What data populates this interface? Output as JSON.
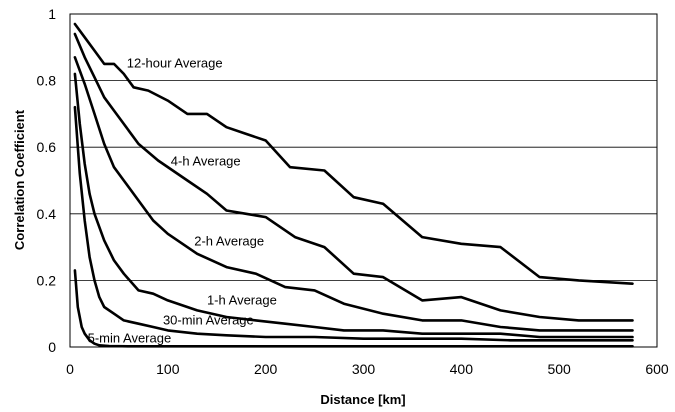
{
  "chart_data": {
    "type": "line",
    "title": "",
    "xlabel": "Distance  [km]",
    "ylabel": "Correlation Coefficient",
    "xlim": [
      0,
      600
    ],
    "ylim": [
      0,
      1
    ],
    "xticks": [
      0,
      100,
      200,
      300,
      400,
      500,
      600
    ],
    "yticks": [
      0,
      0.2,
      0.4,
      0.6,
      0.8,
      1
    ],
    "xtick_labels": [
      "0",
      "100",
      "200",
      "300",
      "400",
      "500",
      "600"
    ],
    "ytick_labels": [
      "0",
      "0.2",
      "0.4",
      "0.6",
      "0.8",
      "1"
    ],
    "grid": "horizontal",
    "legend": "inline labels",
    "colors": {
      "line": "#000000",
      "grid": "#000000",
      "background": "#ffffff"
    },
    "series": [
      {
        "name": "12-hour Average",
        "x": [
          5,
          15,
          25,
          35,
          45,
          55,
          65,
          80,
          100,
          120,
          140,
          160,
          180,
          200,
          225,
          260,
          290,
          320,
          360,
          400,
          440,
          480,
          520,
          575
        ],
        "y": [
          0.97,
          0.93,
          0.89,
          0.85,
          0.85,
          0.82,
          0.78,
          0.77,
          0.74,
          0.7,
          0.7,
          0.66,
          0.64,
          0.62,
          0.54,
          0.53,
          0.45,
          0.43,
          0.33,
          0.31,
          0.3,
          0.21,
          0.2,
          0.19
        ]
      },
      {
        "name": "4-h Average",
        "x": [
          5,
          15,
          25,
          35,
          45,
          55,
          70,
          90,
          120,
          140,
          160,
          180,
          200,
          230,
          260,
          290,
          320,
          360,
          400,
          440,
          480,
          520,
          575
        ],
        "y": [
          0.94,
          0.87,
          0.81,
          0.75,
          0.71,
          0.67,
          0.61,
          0.56,
          0.5,
          0.46,
          0.41,
          0.4,
          0.39,
          0.33,
          0.3,
          0.22,
          0.21,
          0.14,
          0.15,
          0.11,
          0.09,
          0.08,
          0.08
        ]
      },
      {
        "name": "2-h Average",
        "x": [
          5,
          15,
          25,
          35,
          45,
          55,
          70,
          85,
          100,
          130,
          160,
          190,
          220,
          250,
          280,
          320,
          360,
          400,
          440,
          480,
          520,
          575
        ],
        "y": [
          0.87,
          0.79,
          0.7,
          0.61,
          0.54,
          0.5,
          0.44,
          0.38,
          0.34,
          0.28,
          0.24,
          0.22,
          0.18,
          0.17,
          0.13,
          0.1,
          0.08,
          0.08,
          0.06,
          0.05,
          0.05,
          0.05
        ]
      },
      {
        "name": "1-h Average",
        "x": [
          5,
          10,
          15,
          20,
          25,
          35,
          45,
          55,
          70,
          85,
          100,
          130,
          160,
          190,
          220,
          250,
          280,
          320,
          360,
          400,
          440,
          480,
          520,
          575
        ],
        "y": [
          0.82,
          0.67,
          0.55,
          0.46,
          0.4,
          0.32,
          0.26,
          0.22,
          0.17,
          0.16,
          0.14,
          0.11,
          0.09,
          0.08,
          0.07,
          0.06,
          0.05,
          0.05,
          0.04,
          0.04,
          0.04,
          0.03,
          0.03,
          0.03
        ]
      },
      {
        "name": "30-min Average",
        "x": [
          5,
          10,
          15,
          20,
          25,
          30,
          35,
          45,
          55,
          70,
          85,
          100,
          130,
          160,
          200,
          250,
          300,
          350,
          400,
          450,
          500,
          575
        ],
        "y": [
          0.72,
          0.52,
          0.38,
          0.27,
          0.2,
          0.15,
          0.12,
          0.1,
          0.08,
          0.07,
          0.06,
          0.05,
          0.04,
          0.035,
          0.03,
          0.03,
          0.025,
          0.025,
          0.025,
          0.02,
          0.02,
          0.02
        ]
      },
      {
        "name": "5-min Average",
        "x": [
          5,
          8,
          12,
          15,
          20,
          25,
          30,
          40,
          60,
          100,
          150,
          200,
          300,
          400,
          500,
          575
        ],
        "y": [
          0.23,
          0.12,
          0.06,
          0.04,
          0.02,
          0.01,
          0.005,
          0.003,
          0.002,
          0.002,
          0.002,
          0.002,
          0.002,
          0.002,
          0.002,
          0.002
        ]
      }
    ]
  }
}
